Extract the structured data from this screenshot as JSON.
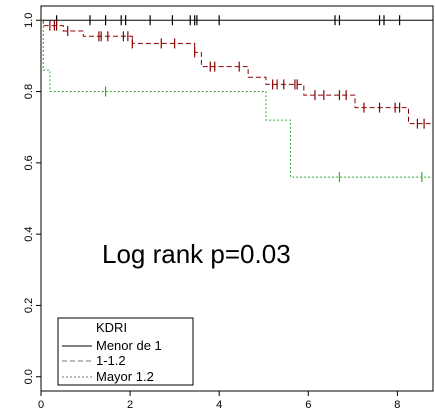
{
  "chart_data": {
    "type": "line",
    "subtype": "kaplan-meier",
    "title": "",
    "xlabel": "",
    "ylabel": "",
    "xlim": [
      0,
      8.8
    ],
    "ylim": [
      -0.04,
      1.04
    ],
    "xticks": [
      0,
      2,
      4,
      6,
      8
    ],
    "yticks": [
      0.0,
      0.2,
      0.4,
      0.6,
      0.8,
      1.0
    ],
    "xtick_labels": [
      "0",
      "2",
      "4",
      "6",
      "8"
    ],
    "ytick_labels": [
      "0.0",
      "0.2",
      "0.4",
      "0.6",
      "0.8",
      "1.0"
    ],
    "grid": false,
    "annotation": "Log rank p=0.03",
    "legend": {
      "title": "KDRI",
      "placement": "bottom-left",
      "entries": [
        "Menor de 1",
        "1-1.2",
        "Mayor 1.2"
      ]
    },
    "series": [
      {
        "name": "Menor de 1",
        "color": "#000000",
        "dash": "solid",
        "steps": [
          [
            0,
            1.0
          ],
          [
            8.8,
            1.0
          ]
        ],
        "censored": [
          0.35,
          1.1,
          1.45,
          1.8,
          1.9,
          2.45,
          2.95,
          3.35,
          3.45,
          3.5,
          4.0,
          6.6,
          6.7,
          7.6,
          7.7,
          8.05
        ]
      },
      {
        "name": "1-1.2",
        "color": "#8b0000",
        "dash": "dashed",
        "steps": [
          [
            0,
            1.0
          ],
          [
            0.05,
            0.985
          ],
          [
            0.5,
            0.97
          ],
          [
            0.95,
            0.955
          ],
          [
            2.05,
            0.935
          ],
          [
            3.45,
            0.91
          ],
          [
            3.6,
            0.87
          ],
          [
            4.65,
            0.84
          ],
          [
            5.05,
            0.82
          ],
          [
            5.9,
            0.79
          ],
          [
            7.05,
            0.755
          ],
          [
            8.25,
            0.71
          ],
          [
            8.8,
            0.71
          ]
        ],
        "censored": [
          0.2,
          0.3,
          0.35,
          0.6,
          1.3,
          1.35,
          1.5,
          1.85,
          1.95,
          2.05,
          2.7,
          3.0,
          3.45,
          3.8,
          3.9,
          4.45,
          5.2,
          5.3,
          5.45,
          5.7,
          5.75,
          6.15,
          6.35,
          6.7,
          6.85,
          7.25,
          7.6,
          7.95,
          8.05,
          8.45,
          8.6
        ]
      },
      {
        "name": "Mayor 1.2",
        "color": "#33aa33",
        "dash": "dotted",
        "steps": [
          [
            0,
            1.0
          ],
          [
            0.05,
            0.86
          ],
          [
            0.2,
            0.8
          ],
          [
            5.05,
            0.72
          ],
          [
            5.6,
            0.56
          ],
          [
            8.8,
            0.56
          ]
        ],
        "censored": [
          1.45,
          6.7,
          8.55
        ]
      }
    ]
  }
}
